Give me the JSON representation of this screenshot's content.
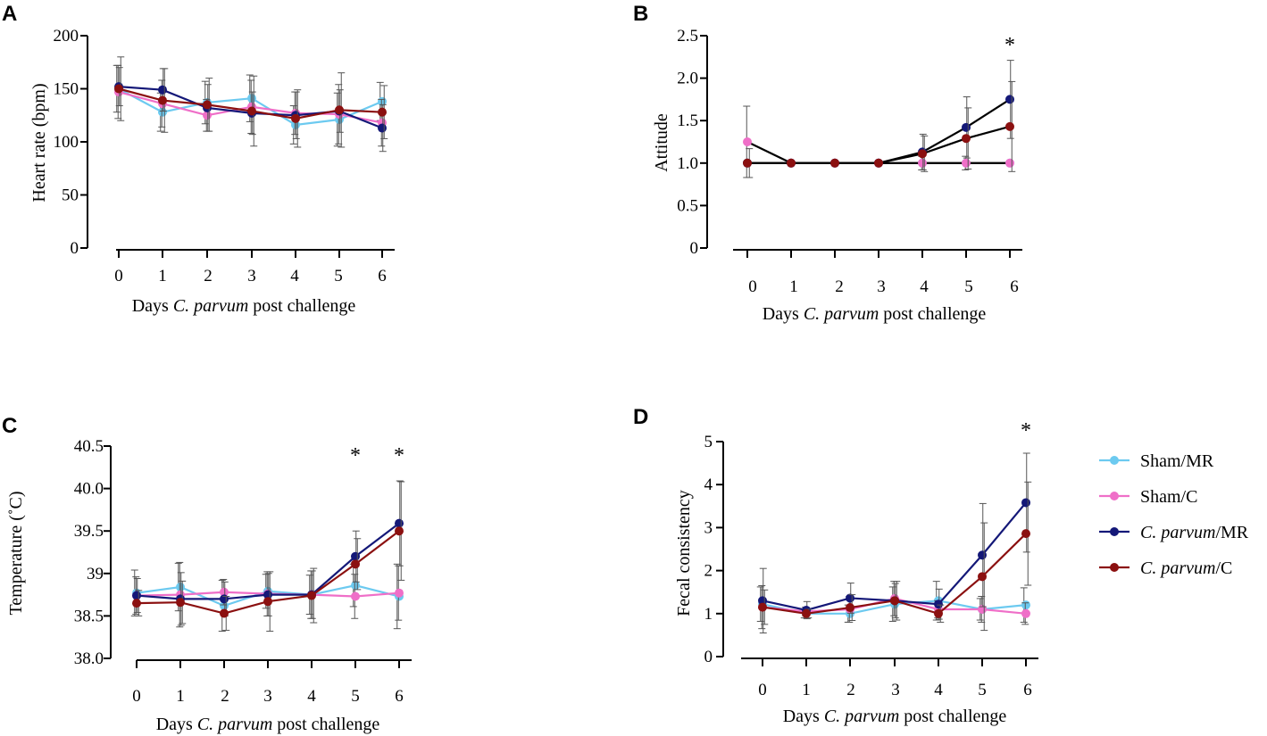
{
  "chart_data": [
    {
      "panel": "A",
      "type": "line",
      "ylabel": "Heart rate (bpm)",
      "xlabel_prefix": "Days ",
      "xlabel_italic": "C. parvum",
      "xlabel_suffix": " post challenge",
      "x": [
        0,
        1,
        2,
        3,
        4,
        5,
        6
      ],
      "ylim": [
        0,
        200
      ],
      "yticks": [
        0,
        50,
        100,
        150,
        200
      ],
      "ytick_labels": [
        "0",
        "50",
        "100",
        "150",
        "200"
      ],
      "stars": [],
      "series": [
        {
          "name": "Sham/MR",
          "values": [
            150,
            128,
            137,
            141,
            116,
            121,
            138
          ],
          "err": [
            22,
            18,
            20,
            22,
            18,
            25,
            18
          ]
        },
        {
          "name": "Sham/C",
          "values": [
            147,
            136,
            125,
            133,
            127,
            126,
            118
          ],
          "err": [
            25,
            22,
            15,
            25,
            20,
            28,
            22
          ]
        },
        {
          "name": "C. parvum/MR",
          "values": [
            152,
            149,
            132,
            127,
            125,
            129,
            113
          ],
          "err": [
            18,
            20,
            22,
            20,
            22,
            20,
            22
          ]
        },
        {
          "name": "C. parvum/C",
          "values": [
            150,
            139,
            135,
            129,
            122,
            130,
            128
          ],
          "err": [
            30,
            30,
            25,
            33,
            27,
            35,
            25
          ]
        }
      ]
    },
    {
      "panel": "B",
      "type": "line",
      "ylabel": "Attitude",
      "xlabel_prefix": "Days ",
      "xlabel_italic": "C. parvum",
      "xlabel_suffix": " post challenge",
      "x": [
        0,
        1,
        2,
        3,
        4,
        5,
        6
      ],
      "ylim": [
        0,
        2.5
      ],
      "yticks": [
        0,
        0.5,
        1.0,
        1.5,
        2.0,
        2.5
      ],
      "ytick_labels": [
        "0",
        "0.5",
        "1.0",
        "1.5",
        "2.0",
        "2.5"
      ],
      "stars": [
        {
          "x": 6,
          "label": "*"
        }
      ],
      "series": [
        {
          "name": "Sham/MR",
          "values": [
            1.0,
            1.0,
            1.0,
            1.0,
            1.0,
            1.0,
            1.0
          ],
          "err": [
            0,
            0,
            0,
            0,
            0,
            0,
            0
          ]
        },
        {
          "name": "Sham/C",
          "values": [
            1.25,
            1.0,
            1.0,
            1.0,
            1.0,
            1.0,
            1.0
          ],
          "err": [
            0.42,
            0,
            0,
            0,
            0.08,
            0.08,
            0
          ]
        },
        {
          "name": "C. parvum/MR",
          "values": [
            1.0,
            1.0,
            1.0,
            1.0,
            1.13,
            1.42,
            1.75
          ],
          "err": [
            0,
            0,
            0,
            0,
            0.21,
            0.36,
            0.46
          ]
        },
        {
          "name": "C. parvum/C",
          "values": [
            1.0,
            1.0,
            1.0,
            1.0,
            1.11,
            1.29,
            1.43
          ],
          "err": [
            0.17,
            0,
            0,
            0,
            0.21,
            0.36,
            0.53
          ]
        }
      ]
    },
    {
      "panel": "C",
      "type": "line",
      "ylabel": "Temperature  (˚C)",
      "xlabel_prefix": "Days ",
      "xlabel_italic": "C. parvum",
      "xlabel_suffix": " post challenge",
      "x": [
        0,
        1,
        2,
        3,
        4,
        5,
        6
      ],
      "ylim": [
        38.0,
        40.5
      ],
      "yticks": [
        38.0,
        38.5,
        39.0,
        39.5,
        40.0,
        40.5
      ],
      "ytick_labels": [
        "38.0",
        "38.5",
        "39",
        "39.5",
        "40.0",
        "40.5"
      ],
      "stars": [
        {
          "x": 5,
          "label": "*"
        },
        {
          "x": 6,
          "label": "*"
        }
      ],
      "series": [
        {
          "name": "Sham/MR",
          "values": [
            38.77,
            38.84,
            38.62,
            38.79,
            38.75,
            38.86,
            38.73
          ],
          "err": [
            0.27,
            0.28,
            0.3,
            0.2,
            0.23,
            0.25,
            0.38
          ]
        },
        {
          "name": "Sham/C",
          "values": [
            38.74,
            38.75,
            38.78,
            38.76,
            38.75,
            38.73,
            38.77
          ],
          "err": [
            0.22,
            0.38,
            0.15,
            0.26,
            0.28,
            0.26,
            0.32
          ]
        },
        {
          "name": "C. parvum/MR",
          "values": [
            38.74,
            38.7,
            38.7,
            38.75,
            38.75,
            39.2,
            39.59
          ],
          "err": [
            0.2,
            0.31,
            0.2,
            0.25,
            0.28,
            0.3,
            0.5
          ]
        },
        {
          "name": "C. parvum/C",
          "values": [
            38.65,
            38.66,
            38.53,
            38.67,
            38.74,
            39.11,
            39.5
          ],
          "err": [
            0.15,
            0.25,
            0.2,
            0.35,
            0.32,
            0.3,
            0.58
          ]
        }
      ]
    },
    {
      "panel": "D",
      "type": "line",
      "ylabel": "Fecal consistency",
      "xlabel_prefix": "Days ",
      "xlabel_italic": "C. parvum",
      "xlabel_suffix": " post challenge",
      "x": [
        0,
        1,
        2,
        3,
        4,
        5,
        6
      ],
      "ylim": [
        0,
        5
      ],
      "yticks": [
        0,
        1,
        2,
        3,
        4,
        5
      ],
      "ytick_labels": [
        "0",
        "1",
        "2",
        "3",
        "4",
        "5"
      ],
      "stars": [
        {
          "x": 6,
          "label": "*"
        }
      ],
      "series": [
        {
          "name": "Sham/MR",
          "values": [
            1.22,
            1.0,
            1.0,
            1.22,
            1.3,
            1.1,
            1.2
          ],
          "err": [
            0.4,
            0.1,
            0.2,
            0.4,
            0.45,
            0.25,
            0.4
          ]
        },
        {
          "name": "Sham/C",
          "values": [
            1.15,
            1.05,
            1.1,
            1.35,
            1.1,
            1.1,
            1.0
          ],
          "err": [
            0.5,
            0.1,
            0.3,
            0.4,
            0.2,
            0.3,
            0.25
          ]
        },
        {
          "name": "C. parvum/MR",
          "values": [
            1.3,
            1.08,
            1.36,
            1.3,
            1.22,
            2.36,
            3.58
          ],
          "err": [
            0.75,
            0.2,
            0.35,
            0.4,
            0.35,
            1.2,
            1.15
          ]
        },
        {
          "name": "C. parvum/C",
          "values": [
            1.15,
            1.0,
            1.14,
            1.3,
            1.0,
            1.86,
            2.86
          ],
          "err": [
            0.4,
            0.1,
            0.3,
            0.45,
            0.2,
            1.25,
            1.2
          ]
        }
      ]
    }
  ],
  "legend": [
    {
      "name": "Sham/MR",
      "italic": "",
      "plain": "Sham/MR",
      "color": "#6ccaf0"
    },
    {
      "name": "Sham/C",
      "italic": "",
      "plain": "Sham/C",
      "color": "#ef6fc8"
    },
    {
      "name": "C. parvum/MR",
      "italic": "C. parvum",
      "plain": "/MR",
      "color": "#141878"
    },
    {
      "name": "C. parvum/C",
      "italic": "C. parvum",
      "plain": "/C",
      "color": "#8b1010"
    }
  ],
  "panel_B_line_color": "#000000"
}
